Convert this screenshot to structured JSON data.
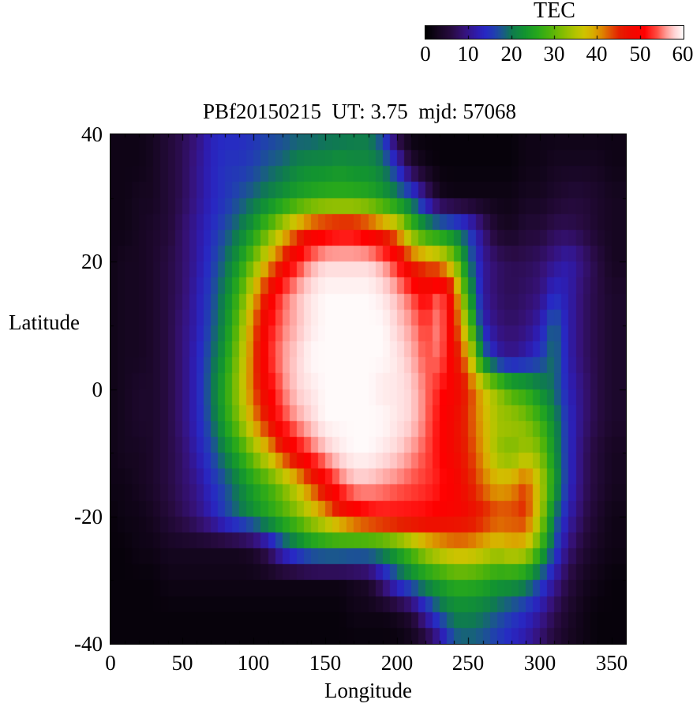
{
  "colorbar": {
    "label": "TEC",
    "tick_labels": [
      "0",
      "10",
      "20",
      "30",
      "40",
      "50",
      "60"
    ],
    "tick_values": [
      0,
      10,
      20,
      30,
      40,
      50,
      60
    ]
  },
  "plot": {
    "title": "PBf20150215  UT: 3.75  mjd: 57068",
    "xlabel": "Longitude",
    "ylabel": "Latitude",
    "x_tick_labels": [
      "0",
      "50",
      "100",
      "150",
      "200",
      "250",
      "300",
      "350"
    ],
    "y_tick_labels": [
      "40",
      "20",
      "0",
      "-20",
      "-40"
    ]
  },
  "chart_data": {
    "type": "heatmap",
    "title": "PBf20150215  UT: 3.75  mjd: 57068",
    "xlabel": "Longitude",
    "ylabel": "Latitude",
    "zlabel": "TEC",
    "xlim": [
      0,
      360
    ],
    "ylim": [
      -40,
      40
    ],
    "zlim": [
      0,
      60
    ],
    "x_ticks": [
      0,
      50,
      100,
      150,
      200,
      250,
      300,
      350
    ],
    "x_minor_tick_step": 10,
    "y_ticks": [
      40,
      20,
      0,
      -20,
      -40
    ],
    "y_minor_tick_step": 10,
    "colorbar_ticks": [
      0,
      10,
      20,
      30,
      40,
      50,
      60
    ],
    "legend_position": "top-right-colorbar",
    "grid": false,
    "lon_nodes": [
      0,
      10,
      20,
      30,
      40,
      50,
      60,
      70,
      80,
      90,
      100,
      110,
      120,
      130,
      140,
      150,
      160,
      170,
      180,
      190,
      200,
      210,
      220,
      230,
      240,
      250,
      260,
      270,
      280,
      290,
      300,
      310,
      320,
      330,
      340,
      350
    ],
    "lat_nodes": [
      40,
      35,
      30,
      25,
      20,
      15,
      10,
      5,
      0,
      -5,
      -10,
      -15,
      -20,
      -25,
      -30,
      -35,
      -40
    ],
    "tec_values": [
      [
        2,
        2,
        2,
        3,
        5,
        7,
        9,
        13,
        14,
        14,
        15,
        16,
        17,
        18,
        18,
        19,
        19,
        20,
        20,
        16,
        5,
        1,
        1,
        1,
        1,
        1,
        1,
        1,
        1,
        2,
        2,
        2,
        2,
        2,
        2,
        2
      ],
      [
        2,
        2,
        2,
        3,
        5,
        7,
        10,
        13,
        15,
        15,
        16,
        18,
        19,
        21,
        22,
        22,
        23,
        22,
        22,
        20,
        14,
        5,
        2,
        1,
        1,
        1,
        1,
        1,
        1,
        2,
        2,
        3,
        3,
        3,
        3,
        2
      ],
      [
        2,
        2,
        3,
        3,
        5,
        7,
        10,
        13,
        15,
        17,
        19,
        21,
        23,
        25,
        26,
        27,
        27,
        27,
        26,
        24,
        21,
        18,
        10,
        3,
        2,
        2,
        2,
        2,
        2,
        3,
        3,
        4,
        5,
        5,
        4,
        3
      ],
      [
        2,
        2,
        3,
        4,
        5,
        8,
        11,
        14,
        17,
        20,
        24,
        30,
        36,
        42,
        47,
        49,
        50,
        50,
        48,
        44,
        40,
        30,
        24,
        22,
        20,
        16,
        9,
        4,
        3,
        5,
        5,
        7,
        7,
        6,
        4,
        3
      ],
      [
        2,
        3,
        3,
        4,
        6,
        8,
        11,
        15,
        19,
        24,
        31,
        39,
        46,
        52,
        56,
        58,
        58,
        58,
        58,
        56,
        52,
        45,
        42,
        40,
        33,
        20,
        11,
        8,
        7,
        7,
        8,
        10,
        12,
        9,
        6,
        3
      ],
      [
        2,
        3,
        3,
        4,
        6,
        8,
        12,
        16,
        21,
        28,
        38,
        48,
        54,
        57,
        59,
        60,
        60,
        60,
        60,
        59,
        57,
        54,
        50,
        55,
        46,
        25,
        11,
        8,
        7,
        8,
        9,
        14,
        12,
        8,
        6,
        4
      ],
      [
        2,
        3,
        3,
        4,
        6,
        9,
        12,
        17,
        22,
        31,
        42,
        51,
        55,
        57,
        59,
        60,
        60,
        60,
        60,
        60,
        58,
        56,
        53,
        56,
        47,
        32,
        13,
        9,
        8,
        9,
        12,
        19,
        12,
        8,
        6,
        4
      ],
      [
        2,
        3,
        3,
        4,
        6,
        9,
        13,
        18,
        24,
        33,
        43,
        52,
        56,
        58,
        60,
        60,
        60,
        60,
        60,
        60,
        59,
        57,
        54,
        55,
        48,
        40,
        20,
        12,
        10,
        12,
        15,
        20,
        12,
        8,
        6,
        4
      ],
      [
        2,
        3,
        4,
        4,
        6,
        9,
        13,
        19,
        26,
        34,
        43,
        50,
        55,
        58,
        59,
        60,
        60,
        60,
        60,
        59,
        59,
        58,
        55,
        52,
        49,
        45,
        38,
        33,
        28,
        26,
        22,
        19,
        13,
        9,
        6,
        4
      ],
      [
        2,
        3,
        4,
        4,
        6,
        9,
        13,
        18,
        25,
        32,
        40,
        47,
        53,
        56,
        58,
        60,
        60,
        60,
        60,
        60,
        59,
        58,
        55,
        51,
        48,
        44,
        39,
        34,
        34,
        32,
        28,
        22,
        14,
        9,
        6,
        4
      ],
      [
        2,
        3,
        3,
        4,
        6,
        8,
        12,
        16,
        21,
        26,
        32,
        38,
        45,
        50,
        54,
        57,
        59,
        60,
        60,
        59,
        58,
        56,
        54,
        51,
        48,
        45,
        40,
        33,
        31,
        34,
        32,
        23,
        14,
        8,
        5,
        3
      ],
      [
        2,
        2,
        3,
        4,
        6,
        8,
        10,
        14,
        17,
        21,
        25,
        28,
        32,
        37,
        43,
        49,
        54,
        57,
        57,
        56,
        55,
        54,
        53,
        52,
        50,
        46,
        42,
        39,
        40,
        44,
        36,
        25,
        14,
        8,
        5,
        3
      ],
      [
        1,
        2,
        2,
        3,
        5,
        7,
        9,
        12,
        16,
        19,
        22,
        25,
        28,
        31,
        35,
        39,
        44,
        48,
        50,
        51,
        51,
        51,
        51,
        50,
        49,
        48,
        46,
        44,
        44,
        45,
        35,
        20,
        12,
        7,
        4,
        2
      ],
      [
        1,
        1,
        2,
        2,
        3,
        3,
        3,
        3,
        3,
        3,
        4,
        8,
        15,
        19,
        22,
        23,
        23,
        22,
        22,
        23,
        26,
        30,
        35,
        38,
        40,
        40,
        38,
        36,
        38,
        37,
        28,
        17,
        9,
        5,
        3,
        2
      ],
      [
        1,
        1,
        1,
        1,
        2,
        2,
        2,
        2,
        2,
        2,
        2,
        2,
        2,
        2,
        2,
        2,
        2,
        3,
        4,
        10,
        16,
        20,
        23,
        25,
        27,
        27,
        26,
        24,
        24,
        22,
        17,
        11,
        6,
        3,
        2,
        1
      ],
      [
        1,
        1,
        1,
        1,
        1,
        1,
        1,
        1,
        1,
        1,
        1,
        1,
        1,
        1,
        1,
        1,
        1,
        2,
        2,
        2,
        3,
        5,
        12,
        18,
        21,
        21,
        20,
        18,
        16,
        14,
        11,
        7,
        4,
        2,
        1,
        1
      ],
      [
        1,
        1,
        1,
        1,
        1,
        1,
        1,
        1,
        1,
        1,
        1,
        1,
        1,
        1,
        1,
        1,
        1,
        1,
        1,
        1,
        1,
        2,
        4,
        9,
        17,
        18,
        17,
        15,
        13,
        11,
        8,
        5,
        3,
        2,
        1,
        1
      ]
    ],
    "palette_stops": [
      [
        0,
        "#000000"
      ],
      [
        3,
        "#160621"
      ],
      [
        6,
        "#280b42"
      ],
      [
        9,
        "#36127a"
      ],
      [
        12,
        "#2e1cae"
      ],
      [
        14,
        "#2729c4"
      ],
      [
        16,
        "#213fb0"
      ],
      [
        18,
        "#1a5a88"
      ],
      [
        20,
        "#0f7a50"
      ],
      [
        23,
        "#129430"
      ],
      [
        26,
        "#27a81c"
      ],
      [
        29,
        "#4fb30a"
      ],
      [
        32,
        "#85bd02"
      ],
      [
        35,
        "#b5c400"
      ],
      [
        37,
        "#cfc300"
      ],
      [
        39,
        "#d9ac00"
      ],
      [
        41,
        "#dd8700"
      ],
      [
        43,
        "#e05304"
      ],
      [
        45,
        "#e52100"
      ],
      [
        48,
        "#f20800"
      ],
      [
        51,
        "#ff0000"
      ],
      [
        54,
        "#ff5045"
      ],
      [
        56,
        "#ff9b95"
      ],
      [
        58,
        "#ffd4d5"
      ],
      [
        60,
        "#fffafa"
      ]
    ]
  }
}
